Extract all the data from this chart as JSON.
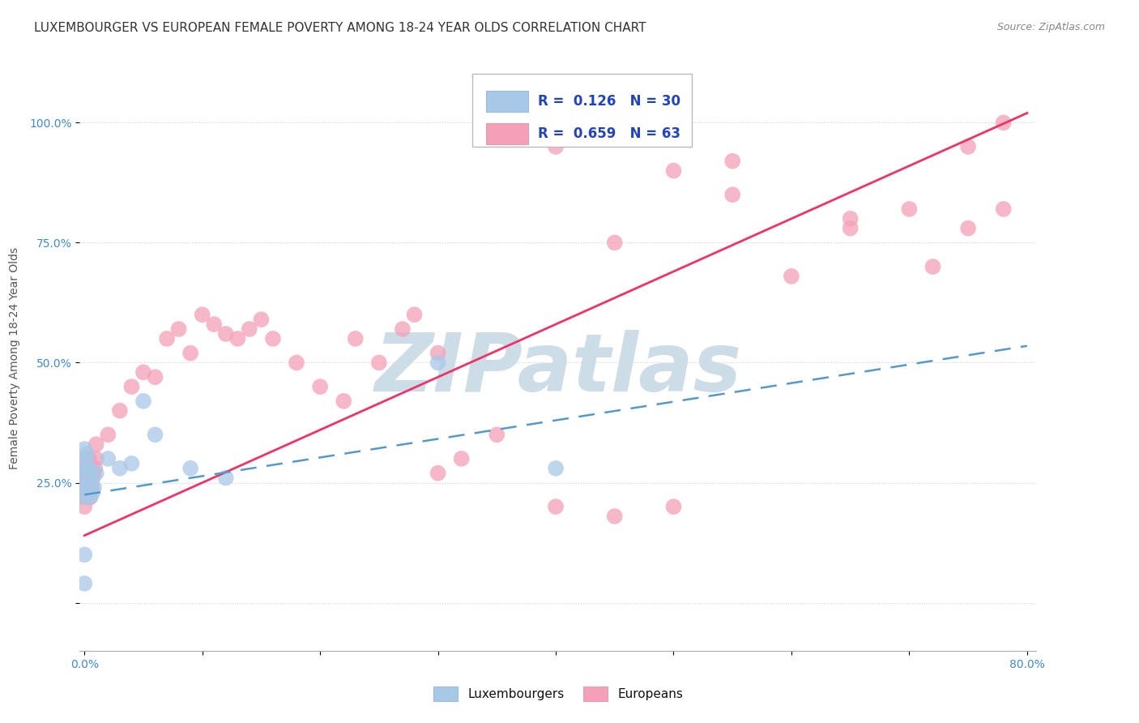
{
  "title": "LUXEMBOURGER VS EUROPEAN FEMALE POVERTY AMONG 18-24 YEAR OLDS CORRELATION CHART",
  "source": "Source: ZipAtlas.com",
  "ylabel": "Female Poverty Among 18-24 Year Olds",
  "xlim": [
    -0.004,
    0.808
  ],
  "ylim": [
    -0.1,
    1.12
  ],
  "xtick_positions": [
    0.0,
    0.1,
    0.2,
    0.3,
    0.4,
    0.5,
    0.6,
    0.7,
    0.8
  ],
  "xticklabels": [
    "0.0%",
    "",
    "",
    "",
    "",
    "",
    "",
    "",
    "80.0%"
  ],
  "ytick_positions": [
    0.0,
    0.25,
    0.5,
    0.75,
    1.0
  ],
  "yticklabels": [
    "",
    "25.0%",
    "50.0%",
    "75.0%",
    "100.0%"
  ],
  "grid_color": "#cccccc",
  "background_color": "#ffffff",
  "lux_color": "#a8c8e8",
  "eur_color": "#f4a0b8",
  "lux_line_color": "#5599cc",
  "eur_line_color": "#ee3366",
  "lux_R": 0.126,
  "lux_N": 30,
  "eur_R": 0.659,
  "eur_N": 63,
  "lux_x": [
    0.0,
    0.0,
    0.0,
    0.0,
    0.0,
    0.001,
    0.001,
    0.001,
    0.002,
    0.002,
    0.002,
    0.003,
    0.003,
    0.004,
    0.004,
    0.005,
    0.005,
    0.006,
    0.007,
    0.008,
    0.01,
    0.02,
    0.03,
    0.04,
    0.05,
    0.06,
    0.09,
    0.12,
    0.3,
    0.4
  ],
  "lux_y": [
    0.04,
    0.1,
    0.22,
    0.27,
    0.32,
    0.24,
    0.28,
    0.3,
    0.23,
    0.26,
    0.31,
    0.25,
    0.27,
    0.24,
    0.28,
    0.22,
    0.26,
    0.25,
    0.23,
    0.24,
    0.27,
    0.3,
    0.28,
    0.29,
    0.42,
    0.35,
    0.28,
    0.26,
    0.5,
    0.28
  ],
  "eur_x": [
    0.0,
    0.0,
    0.0,
    0.001,
    0.001,
    0.002,
    0.002,
    0.003,
    0.003,
    0.004,
    0.004,
    0.005,
    0.005,
    0.006,
    0.007,
    0.008,
    0.009,
    0.01,
    0.01,
    0.02,
    0.03,
    0.04,
    0.05,
    0.06,
    0.07,
    0.08,
    0.09,
    0.1,
    0.11,
    0.12,
    0.13,
    0.14,
    0.15,
    0.16,
    0.18,
    0.2,
    0.22,
    0.23,
    0.25,
    0.27,
    0.28,
    0.3,
    0.3,
    0.32,
    0.35,
    0.4,
    0.45,
    0.5,
    0.55,
    0.6,
    0.65,
    0.7,
    0.75,
    0.78,
    0.4,
    0.42,
    0.45,
    0.5,
    0.55,
    0.65,
    0.72,
    0.75,
    0.78
  ],
  "eur_y": [
    0.2,
    0.24,
    0.3,
    0.22,
    0.26,
    0.25,
    0.28,
    0.23,
    0.27,
    0.25,
    0.3,
    0.22,
    0.28,
    0.24,
    0.26,
    0.27,
    0.28,
    0.3,
    0.33,
    0.35,
    0.4,
    0.45,
    0.48,
    0.47,
    0.55,
    0.57,
    0.52,
    0.6,
    0.58,
    0.56,
    0.55,
    0.57,
    0.59,
    0.55,
    0.5,
    0.45,
    0.42,
    0.55,
    0.5,
    0.57,
    0.6,
    0.52,
    0.27,
    0.3,
    0.35,
    0.2,
    0.18,
    0.2,
    0.92,
    0.68,
    0.8,
    0.82,
    0.95,
    1.0,
    0.95,
    0.98,
    0.75,
    0.9,
    0.85,
    0.78,
    0.7,
    0.78,
    0.82
  ],
  "lux_line_x": [
    0.0,
    0.8
  ],
  "lux_line_y": [
    0.225,
    0.535
  ],
  "eur_line_x": [
    0.0,
    0.8
  ],
  "eur_line_y": [
    0.14,
    1.02
  ],
  "watermark": "ZIPatlas",
  "watermark_color": "#ccdde8",
  "title_fontsize": 11,
  "axis_label_fontsize": 10,
  "tick_fontsize": 10,
  "tick_color": "#4488cc",
  "title_color": "#333333",
  "source_color": "#888888",
  "legend_text_color": "#2244bb"
}
